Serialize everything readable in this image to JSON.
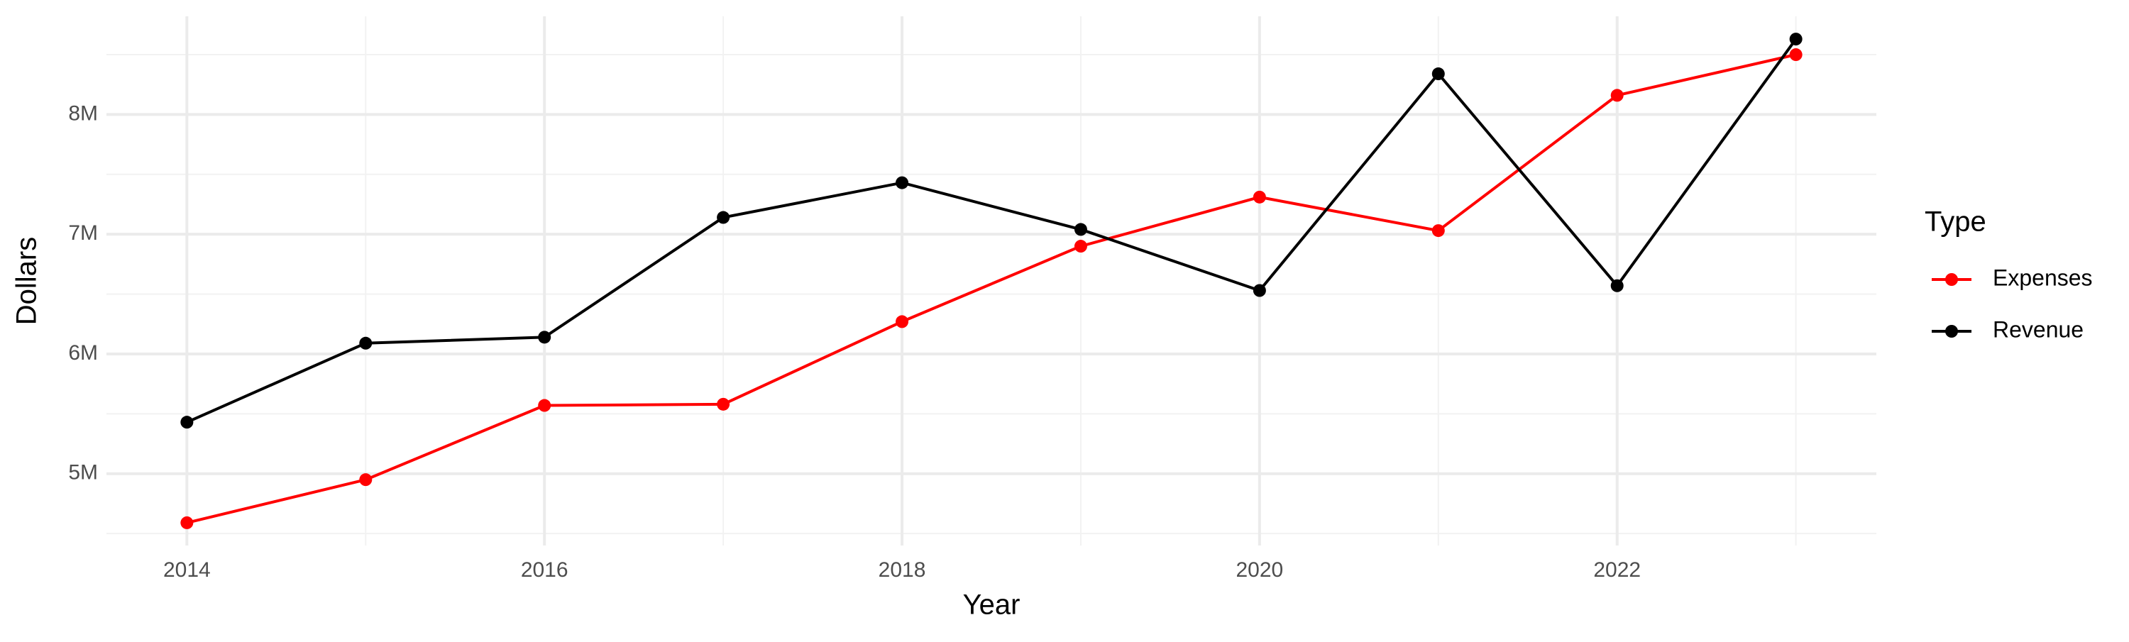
{
  "chart_data": {
    "type": "line",
    "x": [
      2014,
      2015,
      2016,
      2017,
      2018,
      2019,
      2020,
      2021,
      2022,
      2023
    ],
    "series": [
      {
        "name": "Expenses",
        "color": "#ff0000",
        "values": [
          4590000,
          4950000,
          5570000,
          5580000,
          6270000,
          6900000,
          7310000,
          7030000,
          8160000,
          8500000
        ]
      },
      {
        "name": "Revenue",
        "color": "#000000",
        "values": [
          5430000,
          6090000,
          6140000,
          7140000,
          7430000,
          7040000,
          6530000,
          8340000,
          6570000,
          8630000
        ]
      }
    ],
    "xlabel": "Year",
    "ylabel": "Dollars",
    "legend_title": "Type",
    "legend": "right",
    "xlim": [
      2013.55,
      2023.45
    ],
    "xticks": [
      2014,
      2016,
      2018,
      2020,
      2022
    ],
    "ylim": [
      4400000,
      8820000
    ],
    "yticks": [
      {
        "value": 5000000,
        "label": "5M"
      },
      {
        "value": 6000000,
        "label": "6M"
      },
      {
        "value": 7000000,
        "label": "7M"
      },
      {
        "value": 8000000,
        "label": "8M"
      }
    ],
    "grid": true
  }
}
